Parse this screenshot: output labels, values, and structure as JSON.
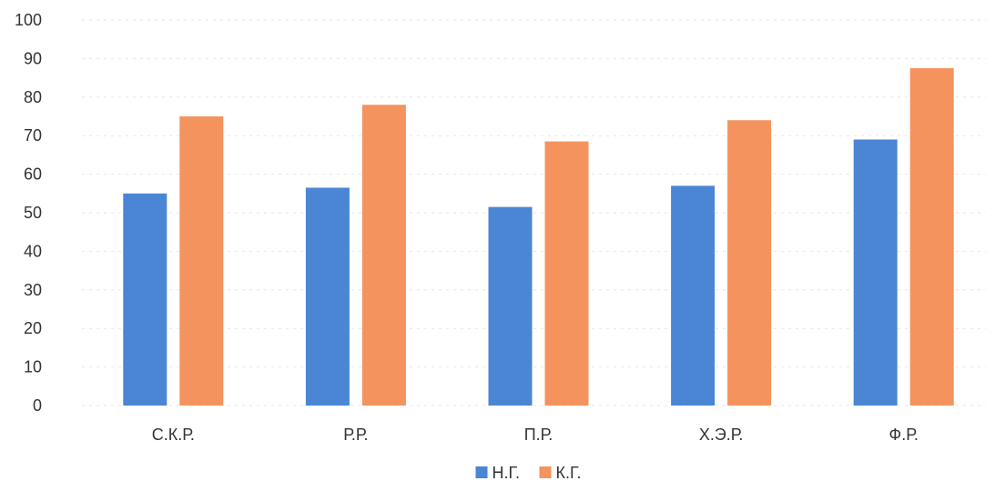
{
  "chart_data": {
    "type": "bar",
    "title": "",
    "xlabel": "",
    "ylabel": "",
    "categories": [
      "С.К.Р.",
      "Р.Р.",
      "П.Р.",
      "Х.Э.Р.",
      "Ф.Р."
    ],
    "series": [
      {
        "name": "Н.Г.",
        "color": "#4a86d4",
        "values": [
          55,
          56.5,
          51.5,
          57,
          69
        ]
      },
      {
        "name": "К.Г.",
        "color": "#f4935e",
        "values": [
          75,
          78,
          68.5,
          74,
          87.5
        ]
      }
    ],
    "ylim": [
      0,
      100
    ],
    "yticks": [
      0,
      10,
      20,
      30,
      40,
      50,
      60,
      70,
      80,
      90,
      100
    ],
    "grid": true,
    "legend_position": "bottom"
  }
}
